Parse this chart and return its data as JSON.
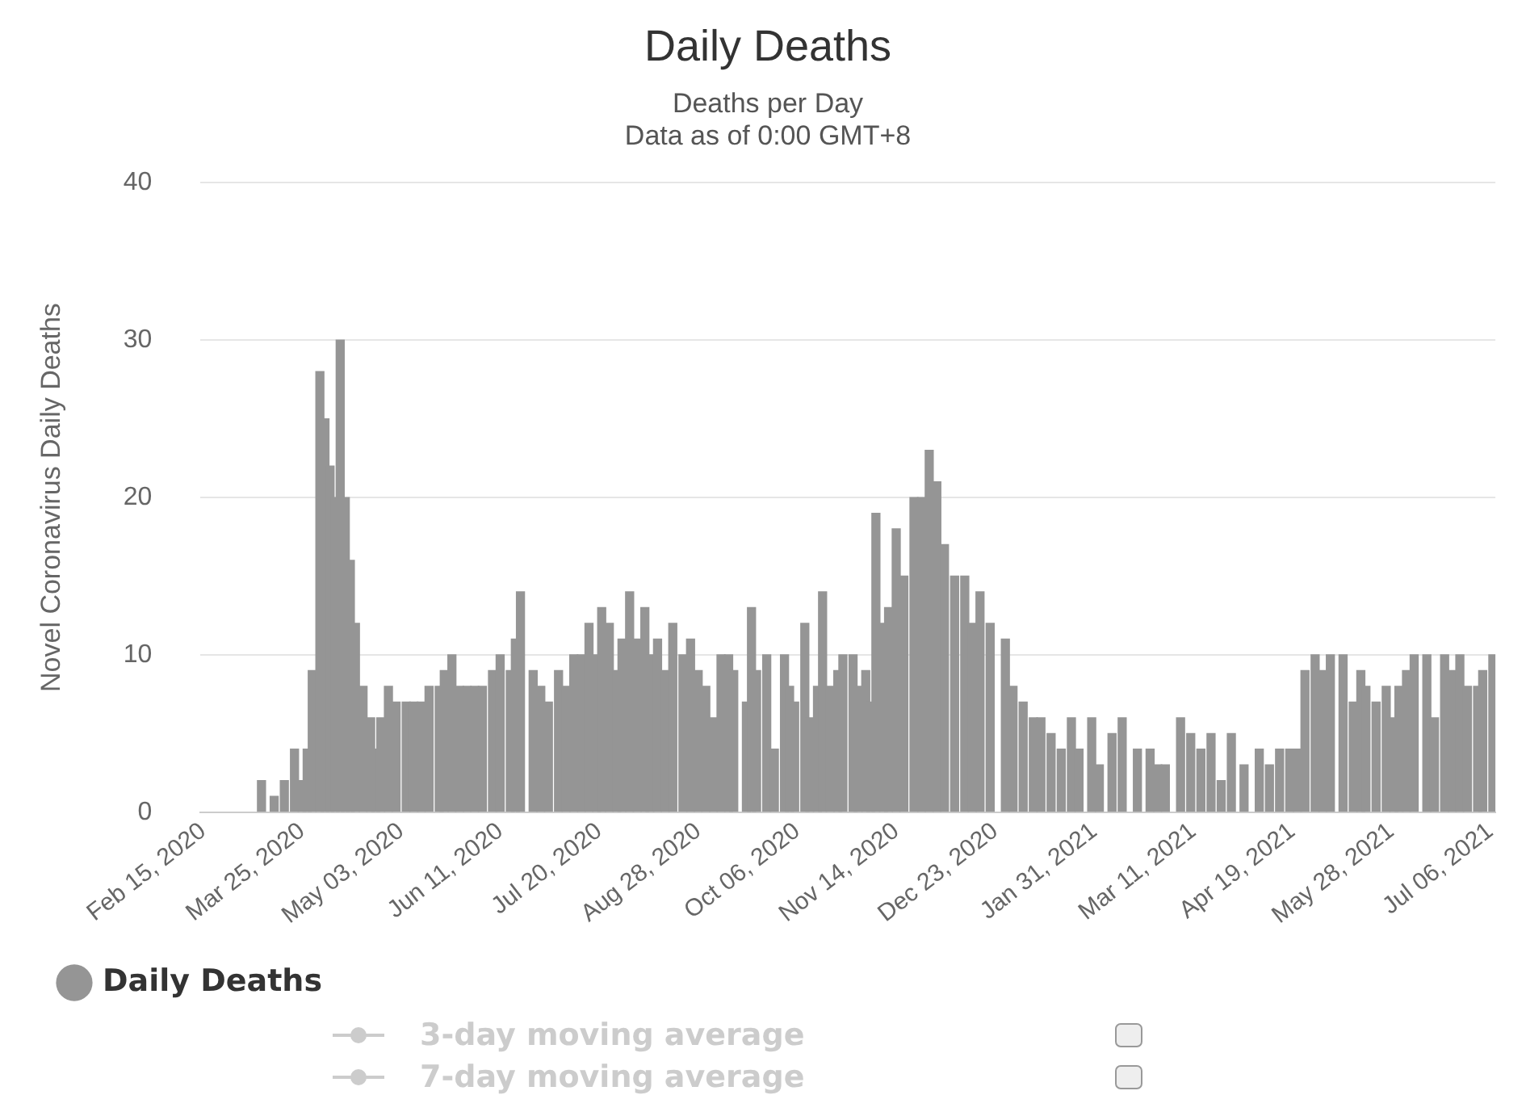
{
  "chart_data": {
    "type": "bar",
    "title": "Daily Deaths",
    "subtitle": "Deaths per Day",
    "ylabel": "Novel Coronavirus Daily Deaths",
    "annotations": [
      "Data as of 0:00 GMT+8",
      "3-day moving average",
      "7-day moving average"
    ],
    "x": [
      "2020-03-09",
      "2020-03-14",
      "2020-03-18",
      "2020-03-22",
      "2020-03-25",
      "2020-03-27",
      "2020-03-29",
      "2020-04-01",
      "2020-04-03",
      "2020-04-05",
      "2020-04-07",
      "2020-04-09",
      "2020-04-11",
      "2020-04-13",
      "2020-04-15",
      "2020-04-18",
      "2020-04-21",
      "2020-04-23",
      "2020-04-25",
      "2020-04-28",
      "2020-05-01",
      "2020-05-05",
      "2020-05-08",
      "2020-05-11",
      "2020-05-14",
      "2020-05-18",
      "2020-05-20",
      "2020-05-23",
      "2020-05-26",
      "2020-05-29",
      "2020-06-01",
      "2020-06-04",
      "2020-06-08",
      "2020-06-11",
      "2020-06-15",
      "2020-06-17",
      "2020-06-19",
      "2020-06-24",
      "2020-06-27",
      "2020-06-30",
      "2020-07-04",
      "2020-07-07",
      "2020-07-10",
      "2020-07-13",
      "2020-07-16",
      "2020-07-19",
      "2020-07-21",
      "2020-07-24",
      "2020-07-27",
      "2020-07-29",
      "2020-08-01",
      "2020-08-04",
      "2020-08-07",
      "2020-08-09",
      "2020-08-12",
      "2020-08-15",
      "2020-08-18",
      "2020-08-22",
      "2020-08-25",
      "2020-08-28",
      "2020-08-31",
      "2020-09-03",
      "2020-09-06",
      "2020-09-09",
      "2020-09-11",
      "2020-09-16",
      "2020-09-18",
      "2020-09-20",
      "2020-09-24",
      "2020-09-27",
      "2020-10-01",
      "2020-10-03",
      "2020-10-05",
      "2020-10-09",
      "2020-10-11",
      "2020-10-14",
      "2020-10-16",
      "2020-10-19",
      "2020-10-22",
      "2020-10-24",
      "2020-10-28",
      "2020-10-30",
      "2020-11-02",
      "2020-11-04",
      "2020-11-06",
      "2020-11-09",
      "2020-11-11",
      "2020-11-14",
      "2020-11-17",
      "2020-11-21",
      "2020-11-24",
      "2020-11-27",
      "2020-11-30",
      "2020-12-03",
      "2020-12-07",
      "2020-12-11",
      "2020-12-14",
      "2020-12-17",
      "2020-12-21",
      "2020-12-27",
      "2020-12-30",
      "2021-01-03",
      "2021-01-07",
      "2021-01-10",
      "2021-01-14",
      "2021-01-18",
      "2021-01-22",
      "2021-01-25",
      "2021-01-30",
      "2021-02-02",
      "2021-02-07",
      "2021-02-11",
      "2021-02-17",
      "2021-02-22",
      "2021-02-25",
      "2021-02-28",
      "2021-03-06",
      "2021-03-10",
      "2021-03-14",
      "2021-03-18",
      "2021-03-22",
      "2021-03-26",
      "2021-03-31",
      "2021-04-06",
      "2021-04-10",
      "2021-04-14",
      "2021-04-18",
      "2021-04-21",
      "2021-04-24",
      "2021-04-28",
      "2021-05-01",
      "2021-05-04",
      "2021-05-09",
      "2021-05-13",
      "2021-05-16",
      "2021-05-18",
      "2021-05-22",
      "2021-05-26",
      "2021-05-29",
      "2021-05-31",
      "2021-06-03",
      "2021-06-06",
      "2021-06-11",
      "2021-06-14",
      "2021-06-18",
      "2021-06-21",
      "2021-06-24",
      "2021-06-27",
      "2021-07-01",
      "2021-07-03",
      "2021-07-07"
    ],
    "series": [
      {
        "name": "Daily Deaths",
        "color": "#959595",
        "values": [
          2,
          1,
          2,
          4,
          2,
          4,
          9,
          28,
          25,
          22,
          20,
          30,
          20,
          16,
          12,
          8,
          6,
          4,
          6,
          8,
          7,
          7,
          7,
          7,
          8,
          8,
          9,
          10,
          8,
          8,
          8,
          8,
          9,
          10,
          9,
          11,
          14,
          9,
          8,
          7,
          9,
          8,
          10,
          10,
          12,
          10,
          13,
          12,
          9,
          11,
          14,
          11,
          13,
          10,
          11,
          9,
          12,
          10,
          11,
          9,
          8,
          6,
          10,
          10,
          9,
          7,
          13,
          9,
          10,
          4,
          10,
          8,
          7,
          12,
          6,
          8,
          14,
          8,
          9,
          10,
          10,
          8,
          9,
          7,
          19,
          12,
          13,
          18,
          15,
          20,
          20,
          23,
          21,
          17,
          15,
          15,
          12,
          14,
          12,
          11,
          8,
          7,
          6,
          6,
          5,
          4,
          6,
          4,
          6,
          3,
          5,
          6,
          4,
          4,
          3,
          3,
          6,
          5,
          4,
          5,
          2,
          5,
          3,
          4,
          3,
          4,
          4,
          4,
          9,
          10,
          9,
          10,
          10,
          7,
          9,
          8,
          7,
          8,
          6,
          8,
          9,
          10,
          10,
          6,
          10,
          9,
          10,
          8,
          8,
          9,
          10
        ]
      }
    ],
    "xlim": [
      "2020-02-14",
      "2021-07-08"
    ],
    "xticks": [
      {
        "value": "2020-02-15",
        "label": "Feb 15, 2020"
      },
      {
        "value": "2020-03-25",
        "label": "Mar 25, 2020"
      },
      {
        "value": "2020-05-03",
        "label": "May 03, 2020"
      },
      {
        "value": "2020-06-11",
        "label": "Jun 11, 2020"
      },
      {
        "value": "2020-07-20",
        "label": "Jul 20, 2020"
      },
      {
        "value": "2020-08-28",
        "label": "Aug 28, 2020"
      },
      {
        "value": "2020-10-06",
        "label": "Oct 06, 2020"
      },
      {
        "value": "2020-11-14",
        "label": "Nov 14, 2020"
      },
      {
        "value": "2020-12-23",
        "label": "Dec 23, 2020"
      },
      {
        "value": "2021-01-31",
        "label": "Jan 31, 2021"
      },
      {
        "value": "2021-03-11",
        "label": "Mar 11, 2021"
      },
      {
        "value": "2021-04-19",
        "label": "Apr 19, 2021"
      },
      {
        "value": "2021-05-28",
        "label": "May 28, 2021"
      },
      {
        "value": "2021-07-06",
        "label": "Jul 06, 2021"
      }
    ],
    "ylim": [
      0,
      40
    ],
    "yticks": [
      0,
      10,
      20,
      30,
      40
    ],
    "grid": "y",
    "legend": "bottom"
  }
}
